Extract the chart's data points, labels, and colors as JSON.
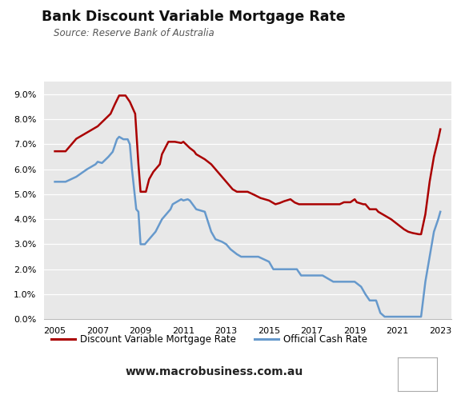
{
  "title": "Bank Discount Variable Mortgage Rate",
  "subtitle": "Source: Reserve Bank of Australia",
  "website": "www.macrobusiness.com.au",
  "background_color": "#e8e8e8",
  "outer_background": "#ffffff",
  "mortgage_color": "#aa0000",
  "cash_color": "#6699cc",
  "mortgage_label": "Discount Variable Mortgage Rate",
  "cash_label": "Official Cash Rate",
  "ylim": [
    0.0,
    0.095
  ],
  "yticks": [
    0.0,
    0.01,
    0.02,
    0.03,
    0.04,
    0.05,
    0.06,
    0.07,
    0.08,
    0.09
  ],
  "ytick_labels": [
    "0.0%",
    "1.0%",
    "2.0%",
    "3.0%",
    "4.0%",
    "5.0%",
    "6.0%",
    "7.0%",
    "8.0%",
    "9.0%"
  ],
  "mortgage_data": [
    [
      2005.0,
      0.0672
    ],
    [
      2005.5,
      0.0672
    ],
    [
      2006.0,
      0.0722
    ],
    [
      2006.5,
      0.0747
    ],
    [
      2007.0,
      0.0772
    ],
    [
      2007.3,
      0.0797
    ],
    [
      2007.6,
      0.0822
    ],
    [
      2007.8,
      0.086
    ],
    [
      2008.0,
      0.0895
    ],
    [
      2008.3,
      0.0895
    ],
    [
      2008.5,
      0.087
    ],
    [
      2008.75,
      0.0822
    ],
    [
      2008.9,
      0.0622
    ],
    [
      2009.0,
      0.051
    ],
    [
      2009.25,
      0.051
    ],
    [
      2009.4,
      0.056
    ],
    [
      2009.6,
      0.059
    ],
    [
      2009.9,
      0.062
    ],
    [
      2010.0,
      0.066
    ],
    [
      2010.3,
      0.071
    ],
    [
      2010.5,
      0.071
    ],
    [
      2010.6,
      0.071
    ],
    [
      2010.9,
      0.0705
    ],
    [
      2011.0,
      0.071
    ],
    [
      2011.3,
      0.0685
    ],
    [
      2011.5,
      0.0672
    ],
    [
      2011.6,
      0.066
    ],
    [
      2012.0,
      0.064
    ],
    [
      2012.3,
      0.062
    ],
    [
      2012.5,
      0.06
    ],
    [
      2012.8,
      0.057
    ],
    [
      2013.0,
      0.055
    ],
    [
      2013.3,
      0.052
    ],
    [
      2013.5,
      0.051
    ],
    [
      2013.7,
      0.051
    ],
    [
      2014.0,
      0.051
    ],
    [
      2014.3,
      0.0498
    ],
    [
      2014.6,
      0.0485
    ],
    [
      2015.0,
      0.0475
    ],
    [
      2015.3,
      0.046
    ],
    [
      2015.5,
      0.0465
    ],
    [
      2015.7,
      0.0472
    ],
    [
      2016.0,
      0.048
    ],
    [
      2016.2,
      0.0467
    ],
    [
      2016.4,
      0.046
    ],
    [
      2016.7,
      0.046
    ],
    [
      2017.0,
      0.046
    ],
    [
      2017.3,
      0.046
    ],
    [
      2017.5,
      0.046
    ],
    [
      2017.7,
      0.046
    ],
    [
      2018.0,
      0.046
    ],
    [
      2018.3,
      0.046
    ],
    [
      2018.5,
      0.0468
    ],
    [
      2018.8,
      0.0468
    ],
    [
      2019.0,
      0.048
    ],
    [
      2019.1,
      0.0468
    ],
    [
      2019.4,
      0.046
    ],
    [
      2019.5,
      0.046
    ],
    [
      2019.7,
      0.044
    ],
    [
      2020.0,
      0.044
    ],
    [
      2020.1,
      0.043
    ],
    [
      2020.3,
      0.042
    ],
    [
      2020.5,
      0.041
    ],
    [
      2020.7,
      0.04
    ],
    [
      2021.0,
      0.038
    ],
    [
      2021.3,
      0.036
    ],
    [
      2021.5,
      0.035
    ],
    [
      2021.7,
      0.0345
    ],
    [
      2022.0,
      0.034
    ],
    [
      2022.1,
      0.034
    ],
    [
      2022.3,
      0.042
    ],
    [
      2022.5,
      0.055
    ],
    [
      2022.7,
      0.065
    ],
    [
      2022.9,
      0.072
    ],
    [
      2023.0,
      0.076
    ]
  ],
  "cash_data": [
    [
      2005.0,
      0.055
    ],
    [
      2005.5,
      0.055
    ],
    [
      2006.0,
      0.057
    ],
    [
      2006.5,
      0.06
    ],
    [
      2006.9,
      0.062
    ],
    [
      2007.0,
      0.063
    ],
    [
      2007.2,
      0.0625
    ],
    [
      2007.5,
      0.065
    ],
    [
      2007.7,
      0.067
    ],
    [
      2007.9,
      0.072
    ],
    [
      2008.0,
      0.073
    ],
    [
      2008.2,
      0.072
    ],
    [
      2008.4,
      0.072
    ],
    [
      2008.5,
      0.07
    ],
    [
      2008.6,
      0.06
    ],
    [
      2008.7,
      0.052
    ],
    [
      2008.8,
      0.044
    ],
    [
      2008.9,
      0.043
    ],
    [
      2009.0,
      0.03
    ],
    [
      2009.2,
      0.03
    ],
    [
      2009.5,
      0.033
    ],
    [
      2009.7,
      0.035
    ],
    [
      2010.0,
      0.04
    ],
    [
      2010.2,
      0.042
    ],
    [
      2010.4,
      0.044
    ],
    [
      2010.5,
      0.046
    ],
    [
      2010.7,
      0.047
    ],
    [
      2010.9,
      0.048
    ],
    [
      2011.0,
      0.0475
    ],
    [
      2011.2,
      0.048
    ],
    [
      2011.3,
      0.0475
    ],
    [
      2011.6,
      0.044
    ],
    [
      2012.0,
      0.043
    ],
    [
      2012.3,
      0.035
    ],
    [
      2012.5,
      0.032
    ],
    [
      2012.8,
      0.031
    ],
    [
      2013.0,
      0.03
    ],
    [
      2013.2,
      0.028
    ],
    [
      2013.5,
      0.026
    ],
    [
      2013.7,
      0.025
    ],
    [
      2014.0,
      0.025
    ],
    [
      2014.5,
      0.025
    ],
    [
      2015.0,
      0.023
    ],
    [
      2015.2,
      0.02
    ],
    [
      2015.4,
      0.02
    ],
    [
      2015.7,
      0.02
    ],
    [
      2016.0,
      0.02
    ],
    [
      2016.3,
      0.02
    ],
    [
      2016.5,
      0.0175
    ],
    [
      2016.7,
      0.0175
    ],
    [
      2017.0,
      0.0175
    ],
    [
      2017.5,
      0.0175
    ],
    [
      2018.0,
      0.015
    ],
    [
      2018.5,
      0.015
    ],
    [
      2019.0,
      0.015
    ],
    [
      2019.3,
      0.013
    ],
    [
      2019.5,
      0.01
    ],
    [
      2019.7,
      0.0075
    ],
    [
      2020.0,
      0.0075
    ],
    [
      2020.2,
      0.0025
    ],
    [
      2020.4,
      0.001
    ],
    [
      2020.6,
      0.001
    ],
    [
      2021.0,
      0.001
    ],
    [
      2021.5,
      0.001
    ],
    [
      2022.0,
      0.001
    ],
    [
      2022.1,
      0.001
    ],
    [
      2022.3,
      0.015
    ],
    [
      2022.5,
      0.025
    ],
    [
      2022.7,
      0.035
    ],
    [
      2022.9,
      0.04
    ],
    [
      2023.0,
      0.043
    ]
  ],
  "logo_bg_color": "#cc0000",
  "logo_text_color": "#ffffff",
  "xticks": [
    2005,
    2007,
    2009,
    2011,
    2013,
    2015,
    2017,
    2019,
    2021,
    2023
  ],
  "xlim": [
    2004.5,
    2023.5
  ]
}
